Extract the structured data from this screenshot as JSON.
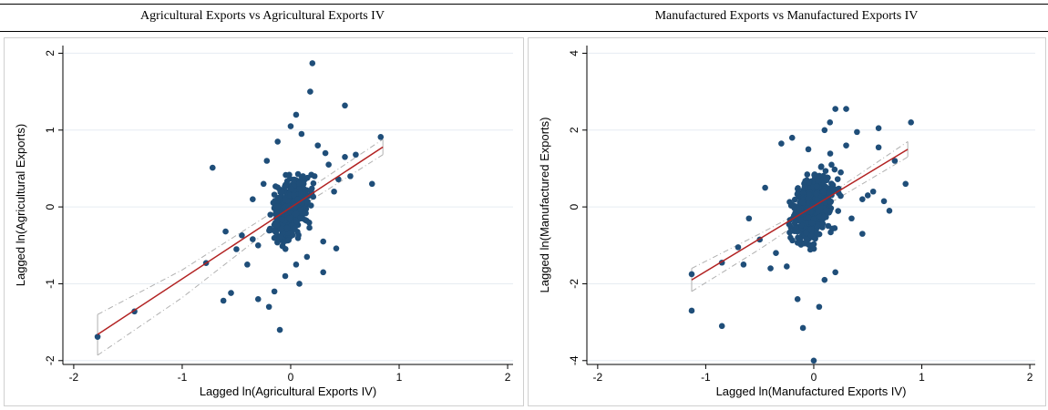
{
  "chart_data": [
    {
      "type": "scatter",
      "title": "Agricultural Exports vs Agricultural Exports IV",
      "xlabel": "Lagged ln(Agricultural Exports IV)",
      "ylabel": "Lagged ln(Agricultural Exports)",
      "xlim": [
        -2.1,
        2.05
      ],
      "ylim": [
        -2.05,
        2.1
      ],
      "xticks": [
        -2,
        -1,
        0,
        1,
        2
      ],
      "yticks": [
        -2,
        -1,
        0,
        1,
        2
      ],
      "grid": true,
      "colors": {
        "points": "#1f4e79",
        "fit": "#b22222",
        "ci": "#b0b0b0"
      },
      "points": [
        [
          -1.78,
          -1.69
        ],
        [
          -1.44,
          -1.36
        ],
        [
          -0.72,
          0.51
        ],
        [
          -0.6,
          -0.32
        ],
        [
          -0.45,
          -0.37
        ],
        [
          -0.35,
          -0.42
        ],
        [
          -0.1,
          -1.6
        ],
        [
          0.2,
          1.87
        ],
        [
          0.5,
          1.32
        ],
        [
          0.83,
          0.91
        ],
        [
          0.44,
          0.36
        ],
        [
          0.42,
          -0.54
        ],
        [
          -0.3,
          -1.2
        ],
        [
          0.05,
          1.2
        ],
        [
          -0.15,
          -1.1
        ],
        [
          -0.5,
          -0.55
        ],
        [
          -0.22,
          0.6
        ],
        [
          0.3,
          -0.45
        ],
        [
          0.35,
          0.55
        ],
        [
          0.55,
          0.4
        ],
        [
          -0.62,
          -1.22
        ],
        [
          -0.55,
          -1.12
        ],
        [
          -0.4,
          -0.75
        ],
        [
          0.1,
          0.95
        ],
        [
          0.18,
          1.5
        ],
        [
          0.75,
          0.3
        ],
        [
          0.6,
          0.68
        ],
        [
          -0.78,
          -0.73
        ],
        [
          0.25,
          0.8
        ],
        [
          -0.05,
          -0.9
        ],
        [
          0.08,
          -1.0
        ],
        [
          0.3,
          -0.85
        ],
        [
          -0.25,
          0.3
        ],
        [
          0.4,
          0.2
        ],
        [
          0.5,
          0.65
        ],
        [
          -0.35,
          0.1
        ],
        [
          0.15,
          -0.65
        ],
        [
          0.32,
          0.7
        ],
        [
          -0.12,
          0.85
        ],
        [
          0.05,
          -0.75
        ],
        [
          -0.2,
          -1.3
        ],
        [
          0.0,
          1.05
        ],
        [
          0.22,
          0.4
        ],
        [
          -0.3,
          -0.5
        ],
        [
          0.12,
          0.3
        ]
      ],
      "fit": {
        "x": [
          -1.78,
          0.85
        ],
        "y": [
          -1.66,
          0.78
        ]
      },
      "ci_upper": {
        "x": [
          -1.78,
          -1.0,
          0.0,
          0.85
        ],
        "y": [
          -1.4,
          -0.82,
          0.08,
          0.88
        ]
      },
      "ci_lower": {
        "x": [
          -1.78,
          -1.0,
          0.0,
          0.85
        ],
        "y": [
          -1.93,
          -1.18,
          -0.08,
          0.68
        ]
      }
    },
    {
      "type": "scatter",
      "title": "Manufactured Exports vs Manufactured Exports IV",
      "xlabel": "Lagged ln(Manufactured Exports IV)",
      "ylabel": "Lagged ln(Manufactured Exports)",
      "xlim": [
        -2.1,
        2.05
      ],
      "ylim": [
        -4.1,
        4.2
      ],
      "xticks": [
        -2,
        -1,
        0,
        1,
        2
      ],
      "yticks": [
        -4,
        -2,
        0,
        2,
        4
      ],
      "grid": true,
      "colors": {
        "points": "#1f4e79",
        "fit": "#b22222",
        "ci": "#b0b0b0"
      },
      "points": [
        [
          -1.13,
          -1.75
        ],
        [
          -1.13,
          -2.7
        ],
        [
          -0.85,
          -3.1
        ],
        [
          -0.85,
          -1.45
        ],
        [
          -0.7,
          -1.05
        ],
        [
          -0.65,
          -1.5
        ],
        [
          -0.5,
          -0.85
        ],
        [
          -0.1,
          -3.15
        ],
        [
          0.0,
          -4.0
        ],
        [
          0.9,
          2.2
        ],
        [
          0.2,
          2.55
        ],
        [
          0.3,
          2.55
        ],
        [
          0.6,
          2.05
        ],
        [
          0.85,
          0.6
        ],
        [
          0.7,
          -0.1
        ],
        [
          0.45,
          -0.7
        ],
        [
          -0.3,
          1.65
        ],
        [
          -0.6,
          -0.3
        ],
        [
          0.6,
          1.55
        ],
        [
          0.4,
          1.95
        ],
        [
          0.75,
          1.2
        ],
        [
          0.55,
          0.4
        ],
        [
          -0.4,
          -1.6
        ],
        [
          0.1,
          -1.9
        ],
        [
          -0.15,
          -2.4
        ],
        [
          0.5,
          0.3
        ],
        [
          0.3,
          1.6
        ],
        [
          -0.35,
          -1.2
        ],
        [
          0.2,
          -1.7
        ],
        [
          0.15,
          2.2
        ],
        [
          -0.45,
          0.5
        ],
        [
          0.05,
          -2.6
        ],
        [
          -0.2,
          1.8
        ],
        [
          0.25,
          0.9
        ],
        [
          0.35,
          -0.3
        ],
        [
          0.65,
          0.15
        ],
        [
          -0.25,
          -1.55
        ],
        [
          0.45,
          0.2
        ],
        [
          0.1,
          2.0
        ],
        [
          -0.05,
          1.5
        ]
      ],
      "fit": {
        "x": [
          -1.13,
          0.87
        ],
        "y": [
          -1.9,
          1.5
        ]
      },
      "ci_upper": {
        "x": [
          -1.13,
          -0.5,
          0.0,
          0.87
        ],
        "y": [
          -1.6,
          -0.7,
          0.05,
          1.7
        ]
      },
      "ci_lower": {
        "x": [
          -1.13,
          -0.5,
          0.0,
          0.87
        ],
        "y": [
          -2.2,
          -1.1,
          -0.15,
          1.3
        ]
      }
    }
  ]
}
